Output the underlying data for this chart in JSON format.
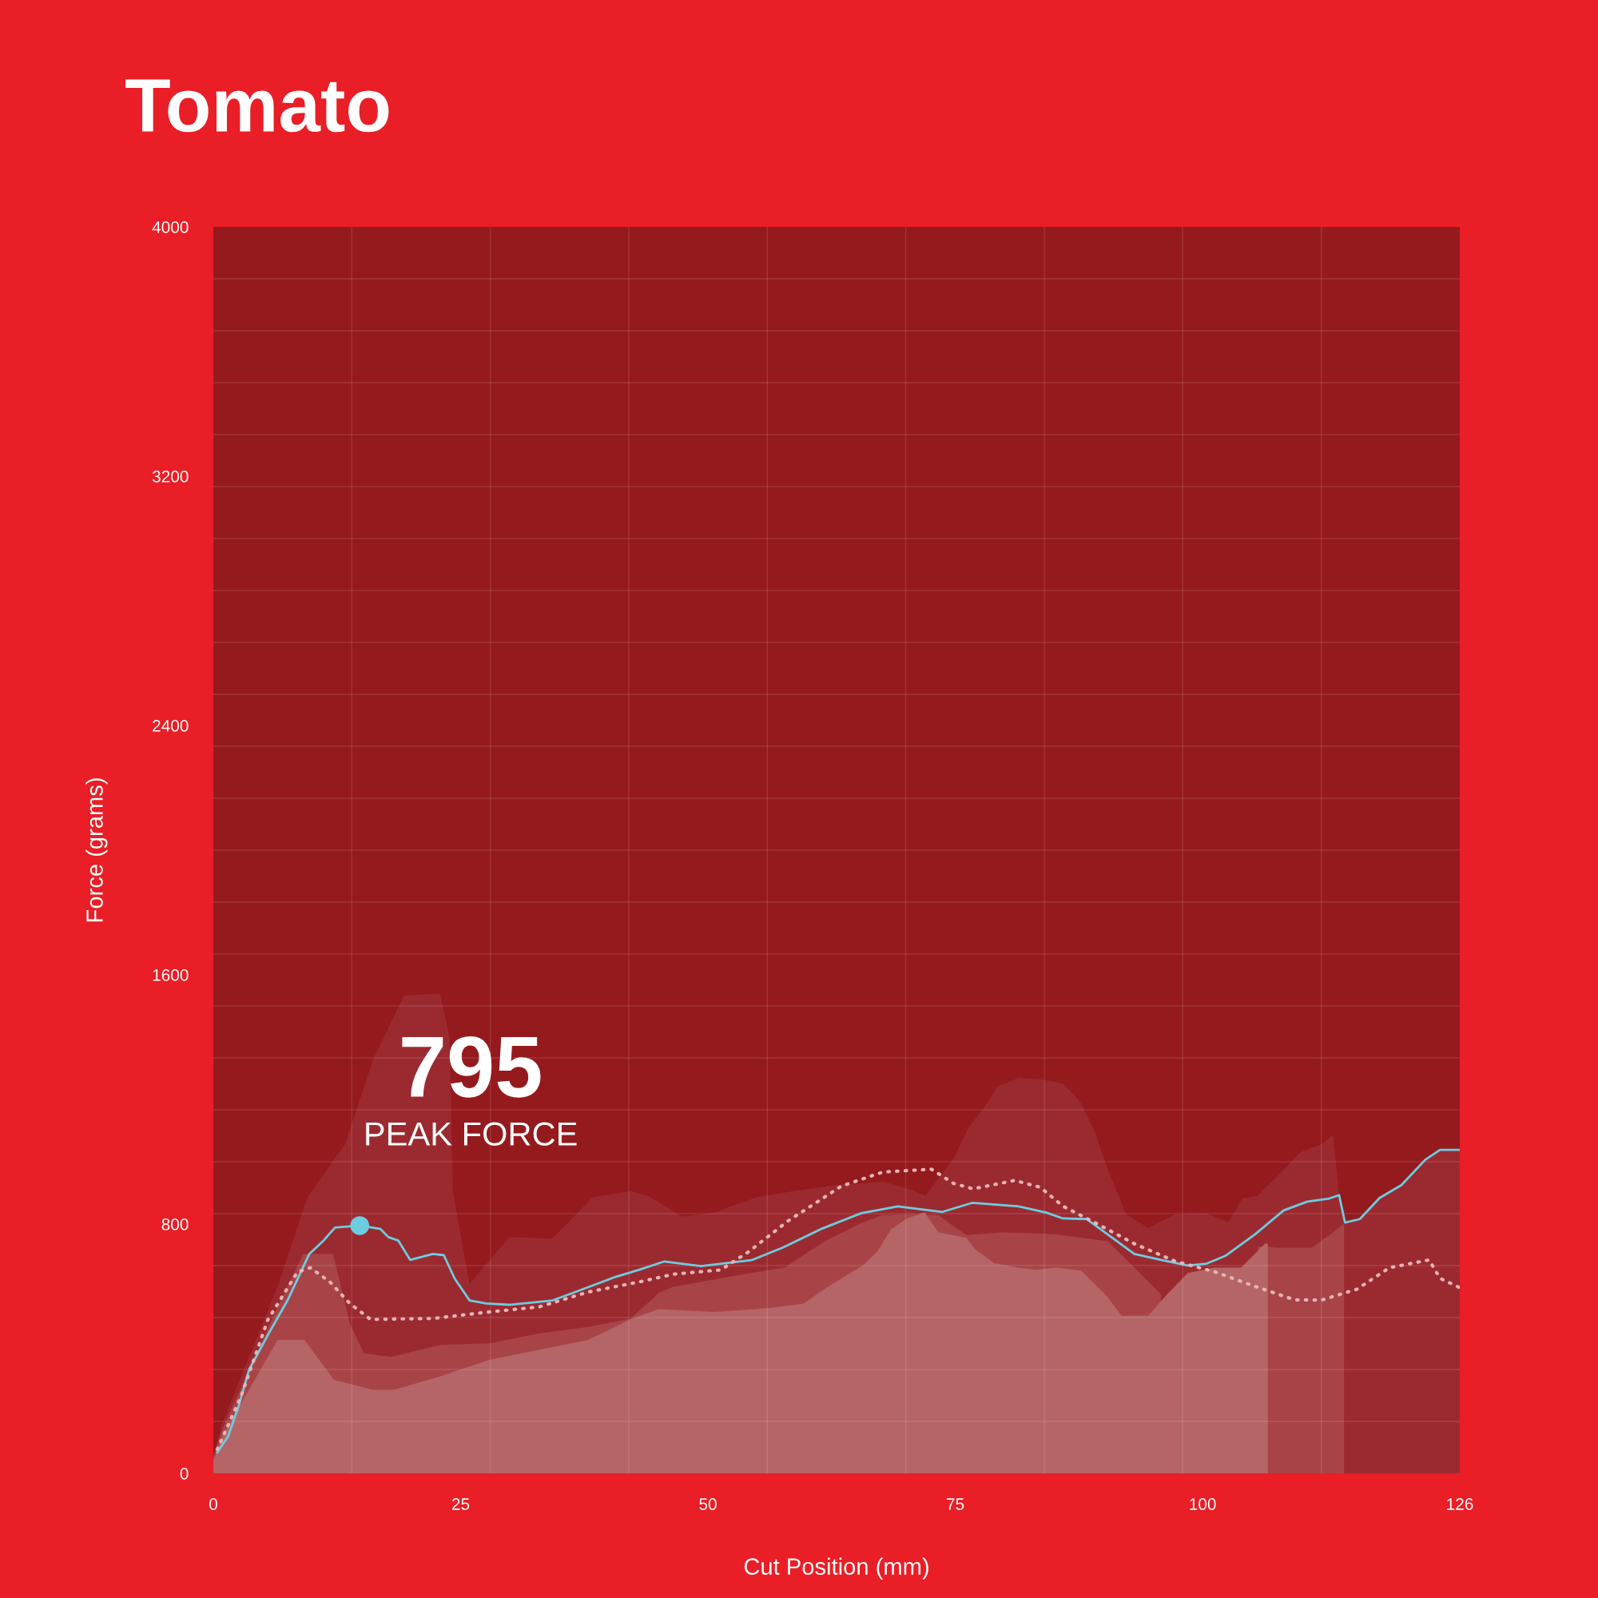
{
  "chart_data": {
    "type": "line",
    "title": "Tomato",
    "xlabel": "Cut Position (mm)",
    "ylabel": "Force (grams)",
    "xlim": [
      0,
      126
    ],
    "ylim": [
      0,
      4000
    ],
    "xticks": [
      0,
      {
        "value": 14,
        "label": null
      },
      25,
      {
        "value": 28,
        "label": null
      },
      {
        "value": 42,
        "label": null
      },
      50,
      {
        "value": 56,
        "label": null
      },
      {
        "value": 70,
        "label": null
      },
      75,
      {
        "value": 84,
        "label": null
      },
      {
        "value": 98,
        "label": null
      },
      100,
      {
        "value": 112,
        "label": null
      },
      126
    ],
    "yticks": [
      0,
      {
        "value": 166.7,
        "label": null
      },
      {
        "value": 333.3,
        "label": null
      },
      {
        "value": 500,
        "label": null
      },
      {
        "value": 666.7,
        "label": null
      },
      800,
      {
        "value": 833.3,
        "label": null
      },
      {
        "value": 1000,
        "label": null
      },
      {
        "value": 1166.7,
        "label": null
      },
      {
        "value": 1333.3,
        "label": null
      },
      {
        "value": 1500,
        "label": null
      },
      1600,
      {
        "value": 1666.7,
        "label": null
      },
      {
        "value": 1833.3,
        "label": null
      },
      {
        "value": 2000,
        "label": null
      },
      {
        "value": 2166.7,
        "label": null
      },
      {
        "value": 2333.3,
        "label": null
      },
      2400,
      {
        "value": 2500,
        "label": null
      },
      {
        "value": 2666.7,
        "label": null
      },
      {
        "value": 2833.3,
        "label": null
      },
      {
        "value": 3000,
        "label": null
      },
      {
        "value": 3166.7,
        "label": null
      },
      3200,
      {
        "value": 3333.3,
        "label": null
      },
      {
        "value": 3500,
        "label": null
      },
      {
        "value": 3666.7,
        "label": null
      },
      {
        "value": 3833.3,
        "label": null
      },
      4000
    ],
    "grid": true,
    "marker": "none",
    "annotations": [
      {
        "text": "795",
        "x": 14.8,
        "y": 795
      },
      "PEAK FORCE"
    ],
    "series": [
      {
        "type": "area",
        "color": "#9b2a30",
        "x": [
          0,
          0.9,
          6.5,
          9.5,
          13.3,
          16.2,
          19.3,
          22.9,
          23.9,
          24.2,
          25.9,
          29.9,
          34.3,
          38.3,
          42.2,
          43.9,
          47.4,
          50.7,
          55.0,
          59.3,
          63.5,
          67.8,
          70.6,
          72.0,
          74.8,
          76.3,
          78.0,
          79.3,
          81.4,
          83.6,
          85.9,
          87.7,
          89.1,
          90.4,
          92.3,
          94.5,
          97.2,
          100.4,
          102.6,
          104.0,
          105.5,
          108.0,
          109.9,
          112.1,
          113.2,
          113.8,
          114.4,
          115.9,
          117.9,
          120.1,
          122.5,
          124.0,
          126.0
        ],
        "values": [
          60,
          160,
          600,
          885,
          1055,
          1332,
          1534,
          1540,
          1396,
          906,
          608,
          758,
          753,
          885,
          906,
          891,
          824,
          837,
          887,
          909,
          927,
          936,
          909,
          891,
          1008,
          1107,
          1179,
          1242,
          1269,
          1265,
          1251,
          1190,
          1096,
          976,
          831,
          788,
          831,
          835,
          805,
          882,
          890,
          967,
          1031,
          1057,
          1087,
          893,
          805,
          816,
          884,
          925,
          1006,
          1038,
          1038
        ]
      },
      {
        "type": "area",
        "color": "#a84448",
        "x": [
          0,
          0.9,
          6.5,
          9.1,
          12.1,
          13.8,
          15.2,
          18.0,
          22.9,
          27.9,
          32.9,
          37.9,
          42.2,
          45.1,
          46.5,
          53.6,
          57.8,
          61.9,
          65.4,
          67.6,
          70.5,
          73.3,
          76.1,
          79.7,
          85.1,
          90.4,
          93.1,
          95.8,
          97.4,
          101.2,
          103.4,
          105.6,
          108.0,
          111.0,
          113.1,
          114.3
        ],
        "values": [
          50,
          141,
          534,
          704,
          704,
          481,
          385,
          374,
          412,
          417,
          449,
          470,
          497,
          581,
          599,
          639,
          661,
          747,
          801,
          828,
          832,
          828,
          765,
          774,
          767,
          745,
          660,
          574,
          null,
          null,
          null,
          728,
          724,
          724,
          771,
          801
        ]
      },
      {
        "type": "area",
        "color": "#b56566",
        "x": [
          0,
          0.9,
          6.5,
          9.2,
          12.2,
          16.2,
          18.2,
          22.9,
          27.9,
          32.9,
          37.9,
          42.2,
          45.0,
          50.7,
          56.3,
          59.7,
          61.9,
          65.6,
          67.1,
          68.5,
          70.2,
          71.9,
          73.3,
          76.1,
          77.0,
          78.9,
          80.9,
          83.2,
          85.1,
          87.7,
          90.4,
          91.8,
          94.5,
          96.4,
          98.5,
          101.2,
          103.9,
          106.3,
          106.6
        ],
        "values": [
          40,
          119,
          428,
          428,
          300,
          268,
          268,
          311,
          364,
          396,
          428,
          495,
          527,
          518,
          531,
          545,
          594,
          666,
          711,
          783,
          819,
          837,
          774,
          756,
          720,
          675,
          662,
          653,
          660,
          651,
          566,
          506,
          506,
          574,
          643,
          660,
          660,
          737,
          737
        ]
      },
      {
        "color": "#6ccde0",
        "line_style": "solid",
        "x": [
          0.4,
          1.5,
          2.6,
          3.6,
          5.6,
          7.5,
          9.7,
          11.2,
          12.3,
          14.8,
          16.9,
          17.7,
          18.7,
          19.9,
          22.2,
          23.3,
          24.4,
          25.9,
          27.6,
          29.9,
          34.3,
          36.6,
          40.6,
          43.0,
          45.6,
          49.3,
          54.4,
          57.6,
          61.5,
          65.5,
          69.2,
          73.7,
          76.7,
          81.4,
          84.2,
          85.9,
          88.3,
          90.4,
          93.1,
          95.8,
          98.5,
          100.4,
          102.3,
          105.3,
          108.2,
          110.6,
          112.8,
          113.8,
          114.4,
          115.9,
          117.9,
          120.1,
          122.5,
          124.0,
          126.0
        ],
        "values": [
          67,
          119,
          220,
          332,
          449,
          555,
          704,
          749,
          789,
          795,
          784,
          758,
          747,
          685,
          704,
          700,
          625,
          555,
          545,
          541,
          555,
          582,
          630,
          653,
          680,
          665,
          684,
          725,
          785,
          835,
          857,
          839,
          868,
          857,
          837,
          818,
          816,
          767,
          704,
          685,
          667,
          673,
          698,
          767,
          844,
          872,
          882,
          893,
          805,
          816,
          884,
          925,
          1006,
          1038,
          1038
        ]
      },
      {
        "color": "#e8b4b4",
        "line_style": "dotted",
        "x": [
          0.4,
          2.8,
          5.5,
          8.5,
          9.8,
          11.8,
          13.8,
          15.9,
          22.2,
          27.9,
          32.9,
          37.9,
          43.0,
          46.5,
          51.3,
          54.1,
          58.1,
          63.5,
          67.7,
          72.6,
          74.8,
          76.8,
          81.0,
          83.6,
          85.9,
          89.1,
          93.1,
          97.2,
          101.2,
          105.3,
          109.3,
          112.0,
          115.6,
          118.9,
          122.9,
          124.0,
          126.0
        ],
        "values": [
          77,
          247,
          492,
          646,
          660,
          614,
          545,
          494,
          497,
          518,
          534,
          582,
          614,
          639,
          653,
          711,
          810,
          922,
          967,
          976,
          931,
          913,
          940,
          918,
          857,
          805,
          737,
          681,
          647,
          600,
          557,
          556,
          591,
          660,
          685,
          626,
          596
        ]
      }
    ]
  }
}
